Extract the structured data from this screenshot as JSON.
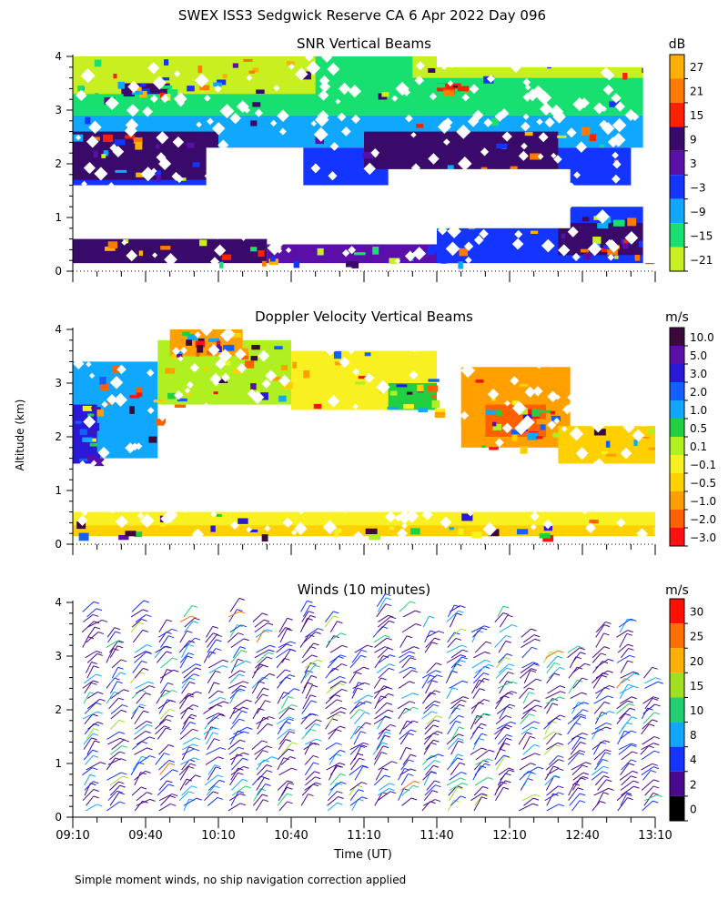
{
  "figure": {
    "title": "SWEX ISS3 Sedgwick Reserve CA   6 Apr 2022 Day 096",
    "ylabel": "Altitude (km)",
    "xlabel": "Time (UT)",
    "footnote": "Simple moment winds, no ship navigation correction applied"
  },
  "chart_data": [
    {
      "type": "heatmap",
      "title": "SNR Vertical Beams",
      "ylabel": "Altitude (km)",
      "yticks": [
        "0",
        "1",
        "2",
        "3",
        "4"
      ],
      "ylim": [
        0,
        4
      ],
      "xlim": [
        "09:10",
        "13:10"
      ],
      "colorbar": {
        "unit": "dB",
        "labels": [
          "27",
          "21",
          "15",
          "9",
          "3",
          "−3",
          "−9",
          "−15",
          "−21"
        ],
        "colors": [
          "#ffb000",
          "#ff7a00",
          "#ff2000",
          "#3a0a6a",
          "#5a10a8",
          "#1434ff",
          "#10a8ff",
          "#18e070",
          "#c8f020"
        ]
      },
      "fields": [
        {
          "t0": 0,
          "t1": 240,
          "z0": 2.9,
          "z1": 4.0,
          "color": "#18e070"
        },
        {
          "t0": 0,
          "t1": 100,
          "z0": 3.3,
          "z1": 4.0,
          "color": "#c8f020"
        },
        {
          "t0": 140,
          "t1": 240,
          "z0": 3.6,
          "z1": 4.0,
          "color": "#c8f020"
        },
        {
          "t0": 0,
          "t1": 240,
          "z0": 2.3,
          "z1": 2.9,
          "color": "#10a8ff"
        },
        {
          "t0": 0,
          "t1": 230,
          "z0": 1.6,
          "z1": 2.3,
          "color": "#1434ff"
        },
        {
          "t0": 0,
          "t1": 60,
          "z0": 1.7,
          "z1": 2.6,
          "color": "#3a0a6a"
        },
        {
          "t0": 120,
          "t1": 200,
          "z0": 1.9,
          "z1": 2.6,
          "color": "#3a0a6a"
        },
        {
          "t0": 0,
          "t1": 80,
          "z0": 0.15,
          "z1": 0.6,
          "color": "#3a0a6a"
        },
        {
          "t0": 80,
          "t1": 160,
          "z0": 0.15,
          "z1": 0.5,
          "color": "#5a10a8"
        },
        {
          "t0": 150,
          "t1": 240,
          "z0": 0.15,
          "z1": 1.2,
          "color": "#1434ff"
        },
        {
          "t0": 200,
          "t1": 240,
          "z0": 0.3,
          "z1": 0.9,
          "color": "#3a0a6a"
        },
        {
          "t0": 20,
          "t1": 40,
          "z0": 3.3,
          "z1": 3.5,
          "color": "#3a0a6a"
        },
        {
          "t0": 150,
          "t1": 160,
          "z0": 3.35,
          "z1": 3.5,
          "color": "#ff2000"
        }
      ],
      "gaps": [
        {
          "t0": 5,
          "t1": 130,
          "z0": 0.7,
          "z1": 1.6
        },
        {
          "t0": 130,
          "t1": 205,
          "z0": 0.8,
          "z1": 1.9
        },
        {
          "t0": 55,
          "t1": 95,
          "z0": 1.4,
          "z1": 2.3
        },
        {
          "t0": 150,
          "t1": 240,
          "z0": 3.8,
          "z1": 4.0
        },
        {
          "t0": 235,
          "t1": 240,
          "z0": 0.15,
          "z1": 4.0
        }
      ]
    },
    {
      "type": "heatmap",
      "title": "Doppler Velocity Vertical Beams",
      "ylabel": "Altitude (km)",
      "yticks": [
        "0",
        "1",
        "2",
        "3",
        "4"
      ],
      "ylim": [
        0,
        4
      ],
      "xlim": [
        "09:10",
        "13:10"
      ],
      "colorbar": {
        "unit": "m/s",
        "labels": [
          "10.0",
          "5.0",
          "3.0",
          "2.0",
          "1.0",
          "0.5",
          "0.1",
          "−0.1",
          "−0.5",
          "−1.0",
          "−2.0",
          "−3.0"
        ],
        "colors": [
          "#3a0a3a",
          "#5a10a8",
          "#2a1ad8",
          "#1460ff",
          "#10a8ff",
          "#20d040",
          "#b0f020",
          "#f8f020",
          "#ffd000",
          "#ffa000",
          "#ff6000",
          "#ff1010"
        ]
      },
      "fields": [
        {
          "t0": 0,
          "t1": 240,
          "z0": 0.15,
          "z1": 0.6,
          "color": "#f8f020"
        },
        {
          "t0": 0,
          "t1": 240,
          "z0": 0.15,
          "z1": 0.35,
          "color": "#ffd000"
        },
        {
          "t0": 0,
          "t1": 35,
          "z0": 1.6,
          "z1": 3.4,
          "color": "#10a8ff"
        },
        {
          "t0": 0,
          "t1": 10,
          "z0": 1.5,
          "z1": 2.6,
          "color": "#2a1ad8"
        },
        {
          "t0": 35,
          "t1": 90,
          "z0": 2.6,
          "z1": 3.8,
          "color": "#b0f020"
        },
        {
          "t0": 40,
          "t1": 70,
          "z0": 3.5,
          "z1": 4.0,
          "color": "#ffa000"
        },
        {
          "t0": 90,
          "t1": 150,
          "z0": 2.5,
          "z1": 3.6,
          "color": "#f8f020"
        },
        {
          "t0": 130,
          "t1": 150,
          "z0": 2.5,
          "z1": 3.0,
          "color": "#20d040"
        },
        {
          "t0": 160,
          "t1": 205,
          "z0": 1.8,
          "z1": 3.3,
          "color": "#ffa000"
        },
        {
          "t0": 170,
          "t1": 195,
          "z0": 2.0,
          "z1": 2.6,
          "color": "#ff6000"
        },
        {
          "t0": 200,
          "t1": 240,
          "z0": 1.5,
          "z1": 2.2,
          "color": "#ffd000"
        }
      ],
      "gaps": [
        {
          "t0": 30,
          "t1": 200,
          "z0": 0.7,
          "z1": 1.6
        },
        {
          "t0": 60,
          "t1": 160,
          "z0": 1.6,
          "z1": 2.2
        },
        {
          "t0": 150,
          "t1": 240,
          "z0": 3.4,
          "z1": 4.0
        },
        {
          "t0": 210,
          "t1": 240,
          "z0": 2.3,
          "z1": 4.0
        }
      ]
    },
    {
      "type": "wind_barbs",
      "title": "Winds (10 minutes)",
      "ylabel": "Altitude (km)",
      "xlabel": "Time (UT)",
      "yticks": [
        "0",
        "1",
        "2",
        "3",
        "4"
      ],
      "ylim": [
        0,
        4
      ],
      "xticks": [
        "09:10",
        "09:40",
        "10:10",
        "10:40",
        "11:10",
        "11:40",
        "12:10",
        "12:40",
        "13:10"
      ],
      "xlim": [
        "09:10",
        "13:10"
      ],
      "colorbar": {
        "unit": "m/s",
        "labels": [
          "30",
          "25",
          "20",
          "15",
          "10",
          "8",
          "4",
          "2",
          "0"
        ],
        "colors": [
          "#ff1000",
          "#ff7000",
          "#ffb000",
          "#a0e020",
          "#20d070",
          "#10a8ff",
          "#1434ff",
          "#4a0a90",
          "#000000"
        ]
      },
      "profile_times_min": [
        5,
        15,
        25,
        35,
        45,
        55,
        65,
        75,
        85,
        95,
        105,
        115,
        125,
        135,
        145,
        155,
        165,
        175,
        185,
        195,
        205,
        215,
        225,
        235
      ],
      "profile_top_km": [
        3.9,
        3.4,
        3.9,
        3.6,
        3.8,
        3.4,
        3.9,
        3.8,
        3.5,
        3.9,
        3.7,
        3.1,
        4.0,
        3.9,
        3.6,
        3.9,
        3.5,
        3.9,
        3.4,
        3.0,
        3.3,
        3.5,
        3.6,
        2.8
      ]
    }
  ]
}
